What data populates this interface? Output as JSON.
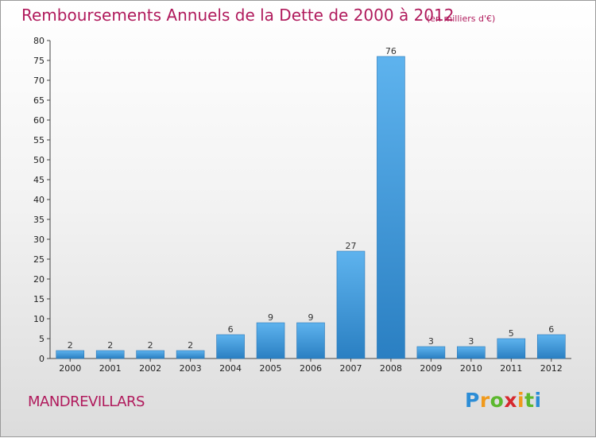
{
  "chart_data": {
    "type": "bar",
    "title": "Remboursements Annuels de la Dette de 2000 à 2012",
    "subtitle": "(en milliers d'€)",
    "categories": [
      "2000",
      "2001",
      "2002",
      "2003",
      "2004",
      "2005",
      "2006",
      "2007",
      "2008",
      "2009",
      "2010",
      "2011",
      "2012"
    ],
    "values": [
      2,
      2,
      2,
      2,
      6,
      9,
      9,
      27,
      76,
      3,
      3,
      5,
      6
    ],
    "ylim": [
      0,
      80
    ],
    "yticks": [
      0,
      5,
      10,
      15,
      20,
      25,
      30,
      35,
      40,
      45,
      50,
      55,
      60,
      65,
      70,
      75,
      80
    ],
    "grid": false,
    "xlabel": "",
    "ylabel": ""
  },
  "colors": {
    "title": "#b01a5c",
    "bar_light": "#5eb3ee",
    "bar_dark": "#2a7fc2"
  },
  "footer": {
    "commune": "MANDREVILLARS",
    "logo_letters": [
      "P",
      "r",
      "o",
      "x",
      "i",
      "t",
      "i"
    ],
    "logo_colors": [
      "#2c8dd6",
      "#f09a1c",
      "#5cb82e",
      "#d6282e",
      "#f09a1c",
      "#5cb82e",
      "#2c8dd6"
    ]
  }
}
